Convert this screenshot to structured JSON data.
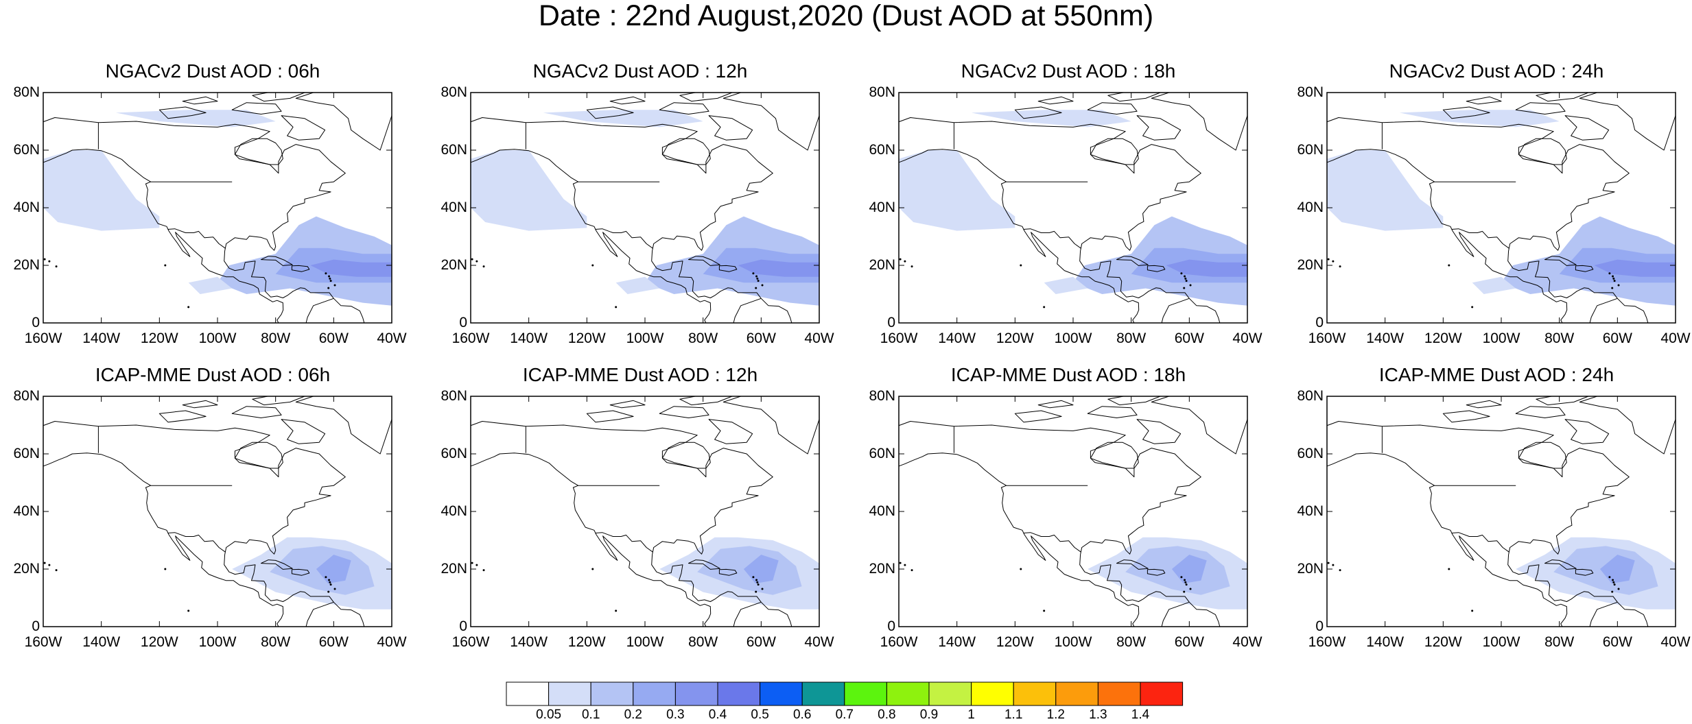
{
  "title": "Date : 22nd August,2020 (Dust AOD at 550nm)",
  "panels": [
    {
      "title": "NGACv2 Dust AOD : 06h"
    },
    {
      "title": "NGACv2 Dust AOD : 12h"
    },
    {
      "title": "NGACv2 Dust AOD : 18h"
    },
    {
      "title": "NGACv2 Dust AOD : 24h"
    },
    {
      "title": "ICAP-MME Dust AOD : 06h"
    },
    {
      "title": "ICAP-MME Dust AOD : 12h"
    },
    {
      "title": "ICAP-MME Dust AOD : 18h"
    },
    {
      "title": "ICAP-MME Dust AOD : 24h"
    }
  ],
  "axes": {
    "lat_labels": [
      "80N",
      "60N",
      "40N",
      "20N",
      "0"
    ],
    "lon_labels": [
      "160W",
      "140W",
      "120W",
      "100W",
      "80W",
      "60W",
      "40W"
    ]
  },
  "colorbar": {
    "labels": [
      "0.05",
      "0.1",
      "0.2",
      "0.3",
      "0.4",
      "0.5",
      "0.6",
      "0.7",
      "0.8",
      "0.9",
      "1",
      "1.1",
      "1.2",
      "1.3",
      "1.4"
    ],
    "colors": [
      "#ffffff",
      "#d4def8",
      "#b4c4f4",
      "#96aaf2",
      "#8494ee",
      "#6a78ea",
      "#0c5ef4",
      "#0e9696",
      "#5cf40e",
      "#8ef20e",
      "#c4f242",
      "#ffff00",
      "#fcc00a",
      "#fc9c0c",
      "#fc720c",
      "#fc2410"
    ]
  }
}
